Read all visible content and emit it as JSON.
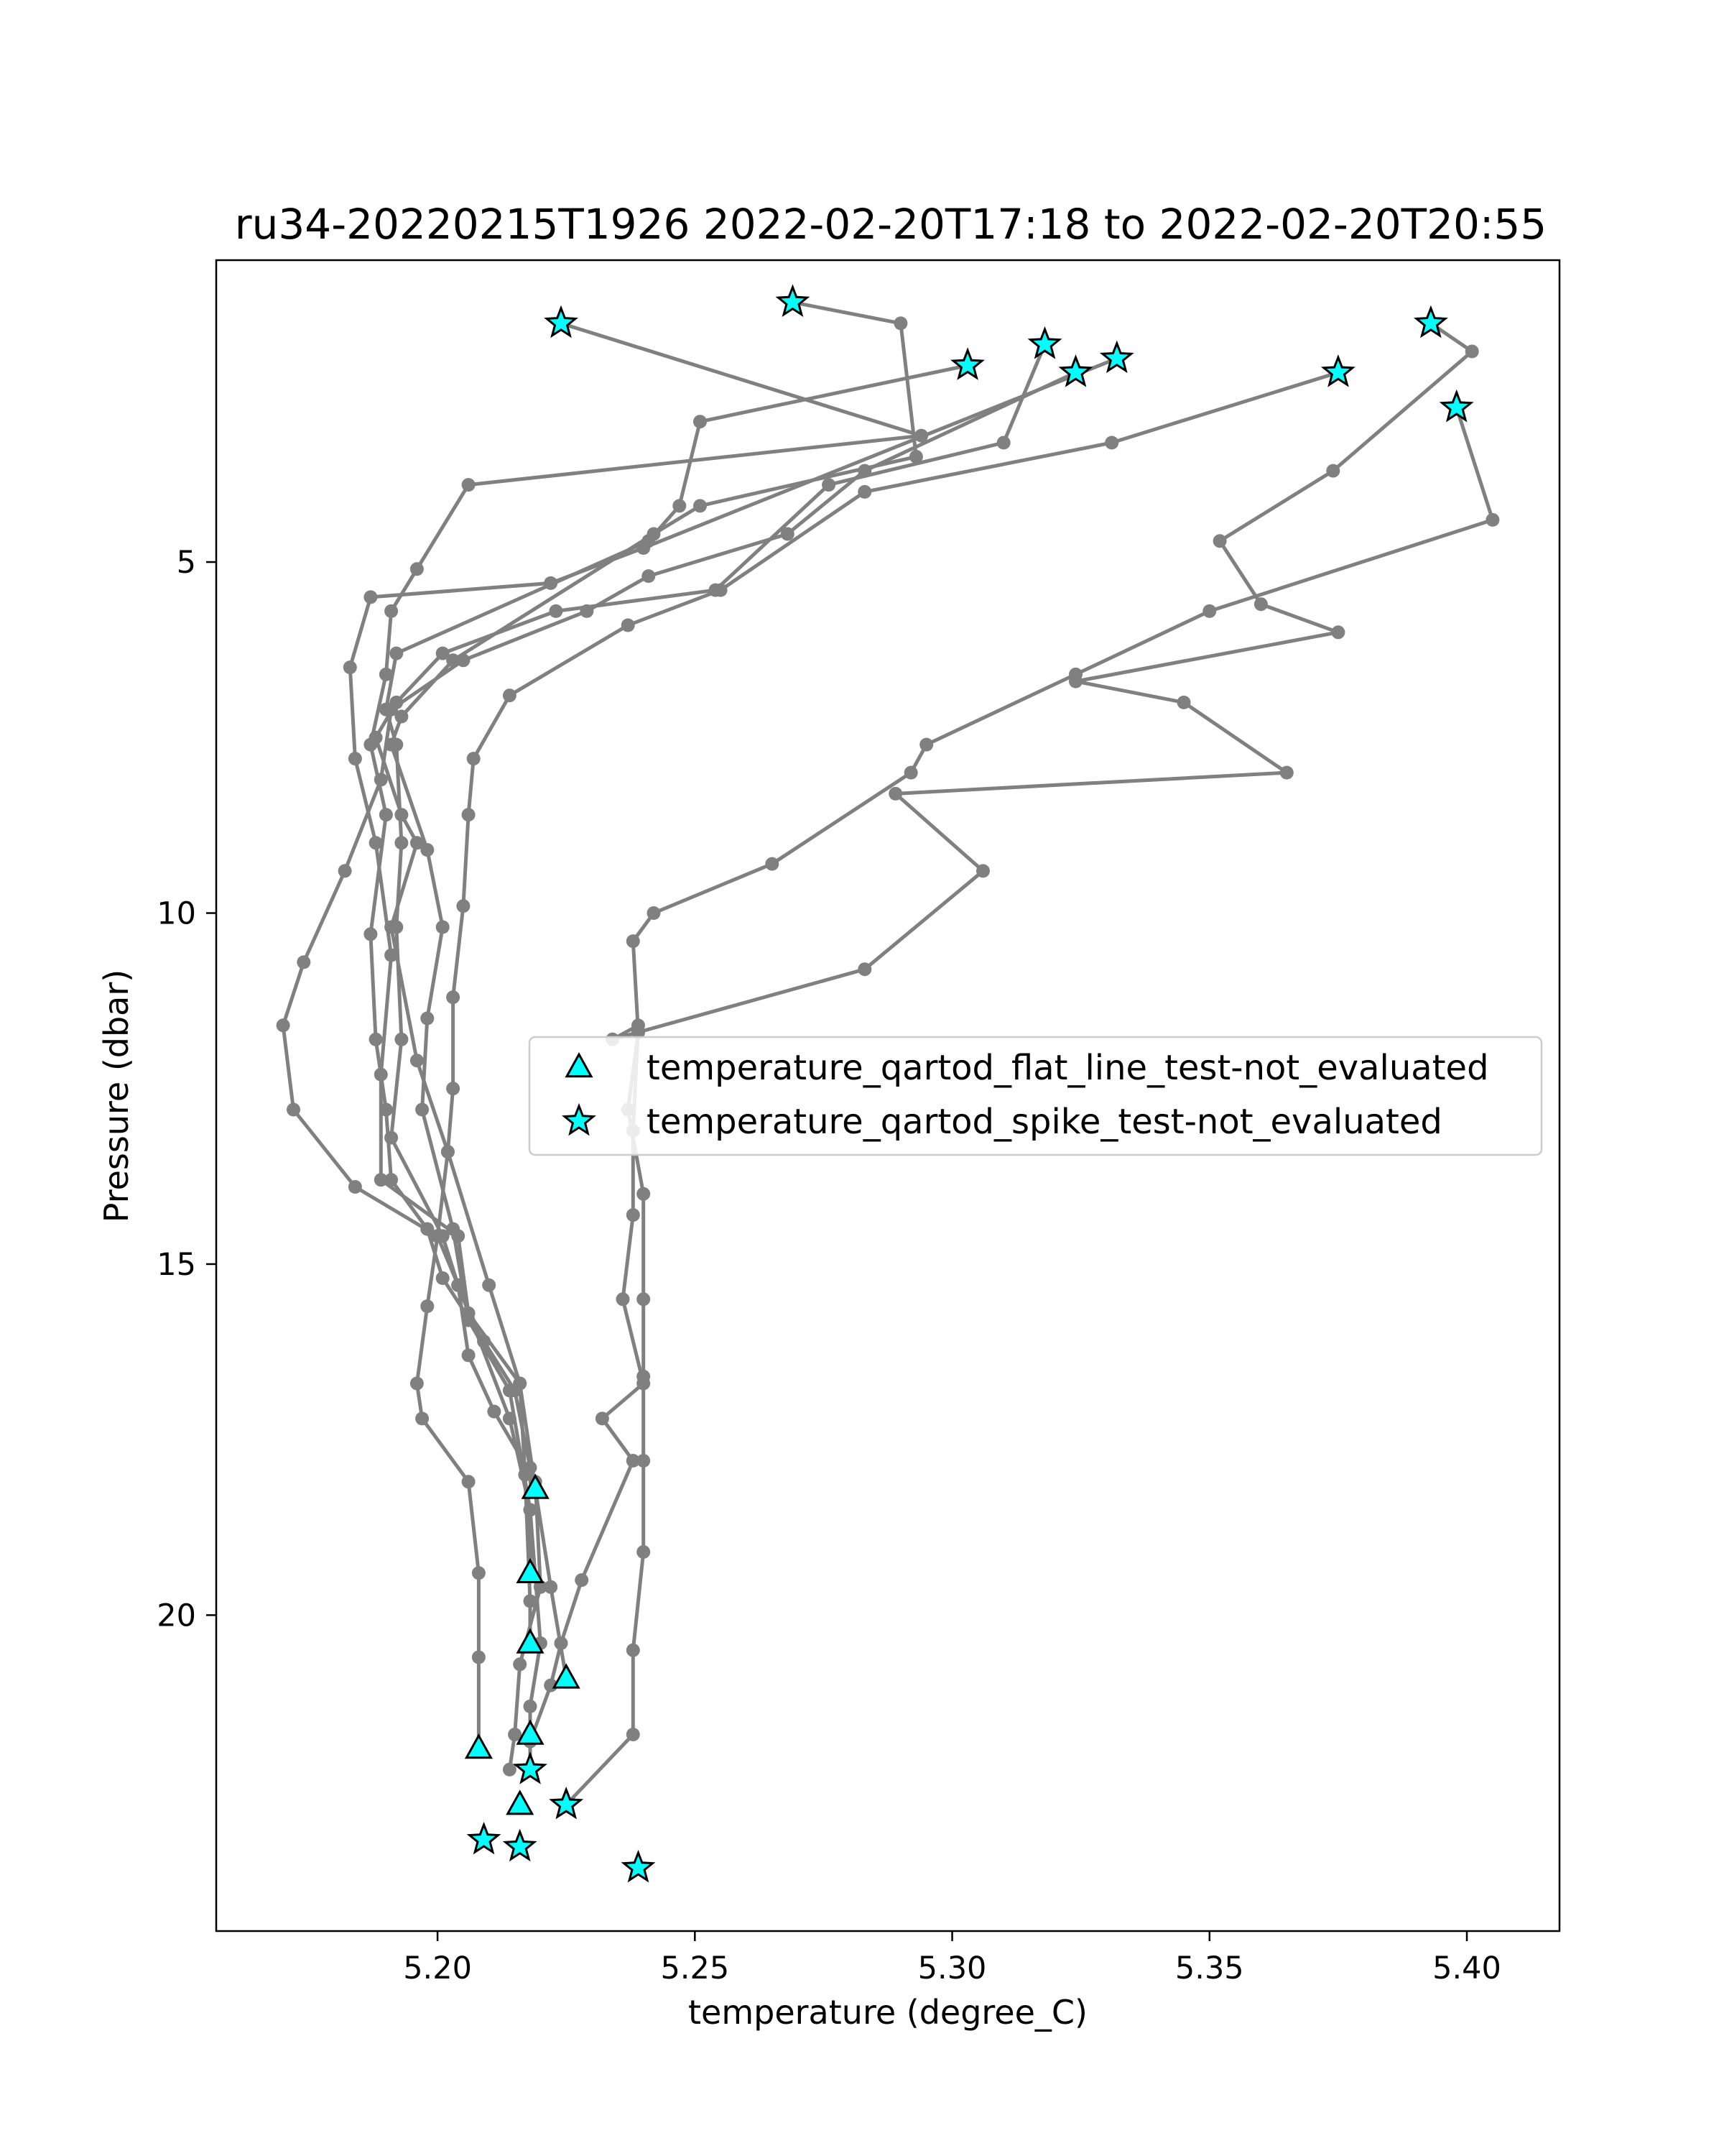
{
  "chart_data": {
    "type": "scatter",
    "title": "ru34-20220215T1926 2022-02-20T17:18 to 2022-02-20T20:55",
    "xlabel": "temperature (degree_C)",
    "ylabel": "Pressure (dbar)",
    "xlim": [
      5.157,
      5.418
    ],
    "ylim": [
      24.5,
      0.7
    ],
    "y_inverted": true,
    "grid": false,
    "legend_position": "center-right",
    "x_ticks": [
      "5.20",
      "5.25",
      "5.30",
      "5.35",
      "5.40"
    ],
    "y_ticks": [
      "5",
      "10",
      "15",
      "20"
    ],
    "profile_color": "#808080",
    "marker_color": "#00ffff",
    "profiles": [
      [
        [
          5.224,
          1.6
        ],
        [
          5.294,
          3.2
        ],
        [
          5.206,
          3.9
        ],
        [
          5.196,
          5.1
        ],
        [
          5.191,
          5.7
        ],
        [
          5.19,
          6.6
        ],
        [
          5.187,
          7.6
        ],
        [
          5.19,
          8.6
        ],
        [
          5.187,
          10.3
        ],
        [
          5.188,
          11.8
        ],
        [
          5.19,
          12.8
        ],
        [
          5.191,
          13.8
        ],
        [
          5.198,
          14.5
        ],
        [
          5.201,
          15.2
        ],
        [
          5.209,
          16.1
        ],
        [
          5.215,
          16.8
        ],
        [
          5.218,
          17.9
        ],
        [
          5.219,
          18.2
        ]
      ],
      [
        [
          5.303,
          2.2
        ],
        [
          5.251,
          3.0
        ],
        [
          5.247,
          4.2
        ],
        [
          5.241,
          4.7
        ],
        [
          5.192,
          6.3
        ],
        [
          5.19,
          7.1
        ],
        [
          5.192,
          7.6
        ],
        [
          5.193,
          9.0
        ],
        [
          5.192,
          10.2
        ],
        [
          5.193,
          11.8
        ],
        [
          5.191,
          13.2
        ],
        [
          5.201,
          14.6
        ],
        [
          5.204,
          15.3
        ],
        [
          5.214,
          17.2
        ],
        [
          5.218,
          18.5
        ],
        [
          5.218,
          19.4
        ]
      ],
      [
        [
          5.332,
          2.1
        ],
        [
          5.24,
          4.8
        ],
        [
          5.222,
          5.3
        ],
        [
          5.187,
          5.5
        ],
        [
          5.183,
          6.5
        ],
        [
          5.184,
          7.8
        ],
        [
          5.188,
          9.0
        ],
        [
          5.191,
          10.6
        ],
        [
          5.189,
          12.3
        ],
        [
          5.189,
          13.8
        ],
        [
          5.204,
          14.6
        ],
        [
          5.206,
          15.7
        ],
        [
          5.216,
          16.7
        ],
        [
          5.217,
          18.0
        ],
        [
          5.218,
          19.8
        ],
        [
          5.218,
          20.4
        ]
      ],
      [
        [
          5.318,
          1.9
        ],
        [
          5.31,
          3.3
        ],
        [
          5.276,
          3.9
        ],
        [
          5.254,
          5.4
        ],
        [
          5.223,
          5.7
        ],
        [
          5.201,
          6.3
        ],
        [
          5.192,
          7.0
        ],
        [
          5.188,
          7.5
        ],
        [
          5.193,
          8.6
        ],
        [
          5.196,
          9.0
        ],
        [
          5.191,
          10.2
        ],
        [
          5.196,
          12.1
        ],
        [
          5.202,
          13.4
        ],
        [
          5.21,
          15.3
        ],
        [
          5.216,
          16.7
        ],
        [
          5.219,
          18.2
        ],
        [
          5.222,
          19.6
        ],
        [
          5.225,
          20.9
        ]
      ],
      [
        [
          5.269,
          1.3
        ],
        [
          5.29,
          1.6
        ],
        [
          5.293,
          3.5
        ],
        [
          5.251,
          4.2
        ],
        [
          5.242,
          4.6
        ],
        [
          5.203,
          6.4
        ],
        [
          5.193,
          7.2
        ],
        [
          5.191,
          7.6
        ],
        [
          5.198,
          9.1
        ],
        [
          5.201,
          10.2
        ],
        [
          5.198,
          11.5
        ],
        [
          5.197,
          12.8
        ],
        [
          5.203,
          14.5
        ],
        [
          5.206,
          15.8
        ],
        [
          5.214,
          16.8
        ],
        [
          5.218,
          18.5
        ],
        [
          5.22,
          20.4
        ],
        [
          5.218,
          21.3
        ],
        [
          5.218,
          21.7
        ]
      ],
      [
        [
          5.324,
          2.3
        ],
        [
          5.283,
          3.7
        ],
        [
          5.268,
          4.6
        ],
        [
          5.241,
          5.2
        ],
        [
          5.229,
          5.7
        ],
        [
          5.205,
          6.4
        ],
        [
          5.191,
          7.1
        ],
        [
          5.189,
          8.1
        ],
        [
          5.182,
          9.4
        ],
        [
          5.174,
          10.7
        ],
        [
          5.17,
          11.6
        ],
        [
          5.172,
          12.8
        ],
        [
          5.184,
          13.9
        ],
        [
          5.2,
          14.6
        ],
        [
          5.204,
          15.3
        ],
        [
          5.206,
          16.3
        ],
        [
          5.211,
          17.1
        ],
        [
          5.219,
          18.1
        ],
        [
          5.22,
          19.6
        ],
        [
          5.216,
          20.7
        ],
        [
          5.215,
          21.7
        ],
        [
          5.214,
          22.2
        ]
      ],
      [
        [
          5.375,
          2.3
        ],
        [
          5.331,
          3.3
        ],
        [
          5.283,
          4.0
        ],
        [
          5.255,
          5.4
        ],
        [
          5.237,
          5.9
        ],
        [
          5.214,
          6.9
        ],
        [
          5.207,
          7.8
        ],
        [
          5.206,
          8.6
        ],
        [
          5.205,
          9.9
        ],
        [
          5.203,
          11.2
        ],
        [
          5.203,
          12.5
        ],
        [
          5.202,
          13.4
        ],
        [
          5.2,
          14.6
        ],
        [
          5.198,
          15.6
        ],
        [
          5.196,
          16.7
        ],
        [
          5.197,
          17.2
        ],
        [
          5.206,
          18.1
        ],
        [
          5.208,
          19.4
        ],
        [
          5.208,
          20.6
        ],
        [
          5.208,
          21.9
        ]
      ],
      [
        [
          5.393,
          1.6
        ],
        [
          5.401,
          2.0
        ],
        [
          5.374,
          3.7
        ],
        [
          5.352,
          4.7
        ],
        [
          5.36,
          5.6
        ],
        [
          5.375,
          6.0
        ],
        [
          5.324,
          6.7
        ],
        [
          5.345,
          7.0
        ],
        [
          5.365,
          8.0
        ],
        [
          5.289,
          8.3
        ],
        [
          5.306,
          9.4
        ],
        [
          5.283,
          10.8
        ],
        [
          5.234,
          11.8
        ],
        [
          5.239,
          11.6
        ],
        [
          5.238,
          13.1
        ],
        [
          5.238,
          14.3
        ],
        [
          5.236,
          15.5
        ],
        [
          5.24,
          16.7
        ],
        [
          5.232,
          17.2
        ],
        [
          5.238,
          17.8
        ],
        [
          5.228,
          19.5
        ],
        [
          5.224,
          20.4
        ],
        [
          5.222,
          21.0
        ],
        [
          5.218,
          21.8
        ],
        [
          5.218,
          22.2
        ]
      ],
      [
        [
          5.398,
          2.8
        ],
        [
          5.405,
          4.4
        ],
        [
          5.35,
          5.7
        ],
        [
          5.324,
          6.6
        ],
        [
          5.295,
          7.6
        ],
        [
          5.292,
          8.0
        ],
        [
          5.265,
          9.3
        ],
        [
          5.242,
          10.0
        ],
        [
          5.238,
          10.4
        ],
        [
          5.239,
          11.7
        ],
        [
          5.237,
          12.8
        ],
        [
          5.24,
          14.0
        ],
        [
          5.24,
          15.5
        ],
        [
          5.24,
          16.6
        ],
        [
          5.24,
          17.8
        ],
        [
          5.24,
          19.1
        ],
        [
          5.238,
          20.5
        ],
        [
          5.238,
          21.7
        ],
        [
          5.225,
          22.7
        ]
      ]
    ],
    "series": [
      {
        "name": "temperature_qartod_flat_line_test-not_evaluated",
        "marker": "triangle",
        "points": [
          [
            5.219,
            18.2
          ],
          [
            5.218,
            19.4
          ],
          [
            5.218,
            20.4
          ],
          [
            5.225,
            20.9
          ],
          [
            5.218,
            21.7
          ],
          [
            5.208,
            21.9
          ],
          [
            5.216,
            22.7
          ]
        ]
      },
      {
        "name": "temperature_qartod_spike_test-not_evaluated",
        "marker": "star",
        "points": [
          [
            5.224,
            1.6
          ],
          [
            5.269,
            1.3
          ],
          [
            5.303,
            2.2
          ],
          [
            5.318,
            1.9
          ],
          [
            5.324,
            2.3
          ],
          [
            5.332,
            2.1
          ],
          [
            5.375,
            2.3
          ],
          [
            5.393,
            1.6
          ],
          [
            5.398,
            2.8
          ],
          [
            5.218,
            22.2
          ],
          [
            5.225,
            22.7
          ],
          [
            5.209,
            23.2
          ],
          [
            5.216,
            23.3
          ],
          [
            5.239,
            23.6
          ]
        ]
      }
    ]
  }
}
